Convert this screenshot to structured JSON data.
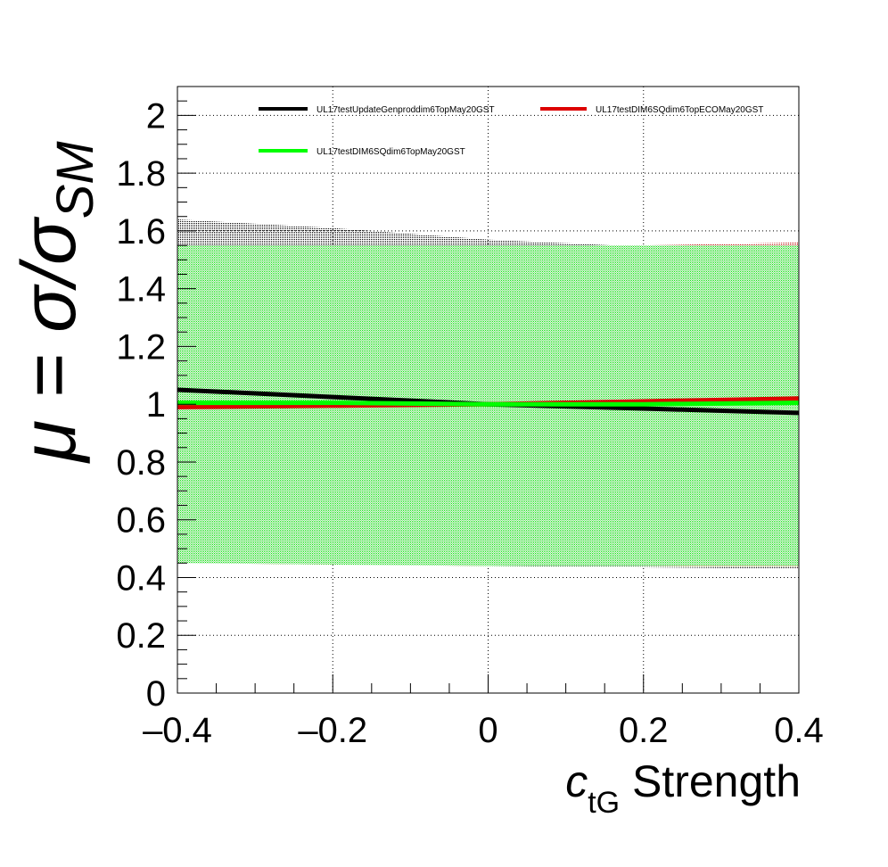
{
  "chart_data": {
    "type": "line",
    "title": "",
    "xlabel": {
      "main": "c",
      "subscript": "tG",
      "suffix": " Strength"
    },
    "ylabel": {
      "prefix": "μ = σ/σ",
      "subscript": "SM"
    },
    "xlim": [
      -0.4,
      0.4
    ],
    "ylim": [
      0,
      2.1
    ],
    "x_ticks": [
      -0.4,
      -0.2,
      0,
      0.2,
      0.4
    ],
    "x_tick_labels": [
      "–0.4",
      "–0.2",
      "0",
      "0.2",
      "0.4"
    ],
    "y_ticks": [
      0,
      0.2,
      0.4,
      0.6,
      0.8,
      1,
      1.2,
      1.4,
      1.6,
      1.8,
      2
    ],
    "y_tick_labels": [
      "0",
      "0.2",
      "0.4",
      "0.6",
      "0.8",
      "1",
      "1.2",
      "1.4",
      "1.6",
      "1.8",
      "2"
    ],
    "grid": true,
    "legend_position": "top",
    "series": [
      {
        "name": "UL17testUpdateGenproddim6TopMay20GST",
        "color": "#000000",
        "x": [
          -0.4,
          -0.2,
          0,
          0.2,
          0.4
        ],
        "y": [
          1.05,
          1.025,
          1.0,
          0.985,
          0.97
        ],
        "band_upper": [
          1.64,
          1.61,
          1.57,
          1.545,
          1.56
        ],
        "band_lower": [
          0.46,
          0.45,
          0.44,
          0.435,
          0.43
        ]
      },
      {
        "name": "UL17testDIM6SQdim6TopECOMay20GST",
        "color": "#dd0000",
        "x": [
          -0.4,
          -0.2,
          0,
          0.2,
          0.4
        ],
        "y": [
          0.99,
          0.995,
          1.0,
          1.01,
          1.02
        ],
        "band_upper": [
          1.55,
          1.55,
          1.55,
          1.55,
          1.56
        ],
        "band_lower": [
          0.45,
          0.445,
          0.44,
          0.44,
          0.435
        ]
      },
      {
        "name": "UL17testDIM6SQdim6TopMay20GST",
        "color": "#00ff00",
        "x": [
          -0.4,
          -0.2,
          0,
          0.2,
          0.4
        ],
        "y": [
          1.005,
          1.005,
          1.0,
          1.0,
          1.005
        ],
        "band_upper": [
          1.55,
          1.55,
          1.55,
          1.55,
          1.55
        ],
        "band_lower": [
          0.45,
          0.445,
          0.44,
          0.44,
          0.44
        ]
      }
    ]
  }
}
